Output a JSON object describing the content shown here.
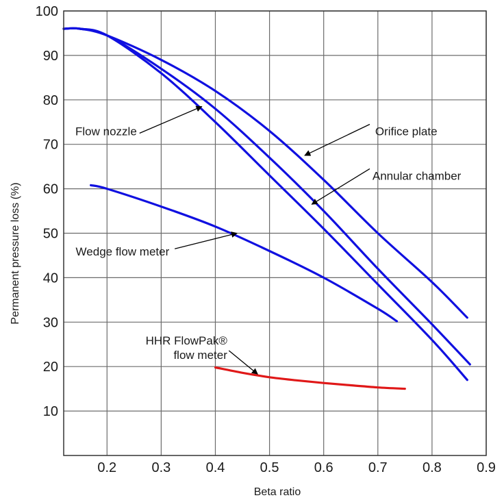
{
  "chart_data": {
    "type": "line",
    "title": "",
    "xlabel": "Beta ratio",
    "ylabel": "Permanent pressure loss (%)",
    "xlim": [
      0.12,
      0.9
    ],
    "ylim": [
      0,
      100
    ],
    "x_ticks": [
      0.2,
      0.3,
      0.4,
      0.5,
      0.6,
      0.7,
      0.8,
      0.9
    ],
    "x_tick_labels": [
      "0.2",
      "0.3",
      "0.4",
      "0.5",
      "0.6",
      "0.7",
      "0.8",
      "0.9"
    ],
    "y_ticks": [
      10,
      20,
      30,
      40,
      50,
      60,
      70,
      80,
      90,
      100
    ],
    "y_tick_labels": [
      "10",
      "20",
      "30",
      "40",
      "50",
      "60",
      "70",
      "80",
      "90",
      "100"
    ],
    "grid": true,
    "legend": "none",
    "series": [
      {
        "name": "Orifice plate",
        "color": "#1010e0",
        "points": [
          [
            0.12,
            96
          ],
          [
            0.15,
            96
          ],
          [
            0.2,
            94.5
          ],
          [
            0.3,
            89
          ],
          [
            0.4,
            82
          ],
          [
            0.5,
            73
          ],
          [
            0.6,
            62
          ],
          [
            0.7,
            50
          ],
          [
            0.8,
            39
          ],
          [
            0.865,
            31
          ]
        ]
      },
      {
        "name": "Annular chamber",
        "color": "#1010e0",
        "points": [
          [
            0.12,
            96
          ],
          [
            0.15,
            96
          ],
          [
            0.2,
            94.5
          ],
          [
            0.3,
            87
          ],
          [
            0.4,
            78
          ],
          [
            0.5,
            67
          ],
          [
            0.6,
            55
          ],
          [
            0.7,
            42
          ],
          [
            0.8,
            29.5
          ],
          [
            0.87,
            20.5
          ]
        ]
      },
      {
        "name": "Flow nozzle",
        "color": "#1010e0",
        "points": [
          [
            0.12,
            96
          ],
          [
            0.15,
            96
          ],
          [
            0.2,
            94.5
          ],
          [
            0.3,
            86
          ],
          [
            0.4,
            75
          ],
          [
            0.5,
            63
          ],
          [
            0.6,
            51
          ],
          [
            0.7,
            38.5
          ],
          [
            0.8,
            26
          ],
          [
            0.865,
            17
          ]
        ]
      },
      {
        "name": "Wedge flow meter",
        "color": "#1010e0",
        "points": [
          [
            0.17,
            60.8
          ],
          [
            0.2,
            60
          ],
          [
            0.3,
            56
          ],
          [
            0.4,
            51.5
          ],
          [
            0.5,
            46
          ],
          [
            0.6,
            40
          ],
          [
            0.7,
            33
          ],
          [
            0.735,
            30.2
          ]
        ]
      },
      {
        "name": "HHR FlowPak® flow meter",
        "color": "#e01818",
        "points": [
          [
            0.4,
            19.8
          ],
          [
            0.45,
            18.6
          ],
          [
            0.5,
            17.6
          ],
          [
            0.55,
            16.9
          ],
          [
            0.6,
            16.3
          ],
          [
            0.65,
            15.8
          ],
          [
            0.7,
            15.3
          ],
          [
            0.75,
            15
          ]
        ]
      }
    ],
    "annotations": [
      {
        "id": "flow-nozzle",
        "lines": [
          "Flow nozzle"
        ],
        "anchor": "end",
        "text_at": [
          0.255,
          72
        ],
        "line_from": [
          0.26,
          72.5
        ],
        "arrow_to": [
          0.375,
          78.5
        ]
      },
      {
        "id": "orifice-plate",
        "lines": [
          "Orifice plate"
        ],
        "anchor": "start",
        "text_at": [
          0.695,
          72
        ],
        "line_from": [
          0.685,
          74.5
        ],
        "arrow_to": [
          0.565,
          67.5
        ]
      },
      {
        "id": "annular-chamber",
        "lines": [
          "Annular chamber"
        ],
        "anchor": "start",
        "text_at": [
          0.69,
          62
        ],
        "line_from": [
          0.685,
          64.5
        ],
        "arrow_to": [
          0.578,
          56.5
        ]
      },
      {
        "id": "wedge-flow-meter",
        "lines": [
          "Wedge flow meter"
        ],
        "anchor": "end",
        "text_at": [
          0.315,
          45
        ],
        "line_from": [
          0.325,
          46.5
        ],
        "arrow_to": [
          0.44,
          50
        ]
      },
      {
        "id": "hhr-flowpak",
        "lines": [
          "HHR FlowPak®",
          "flow meter"
        ],
        "anchor": "end",
        "text_at": [
          0.422,
          25
        ],
        "line_from": [
          0.425,
          23.6
        ],
        "arrow_to": [
          0.478,
          18.3
        ]
      }
    ]
  }
}
